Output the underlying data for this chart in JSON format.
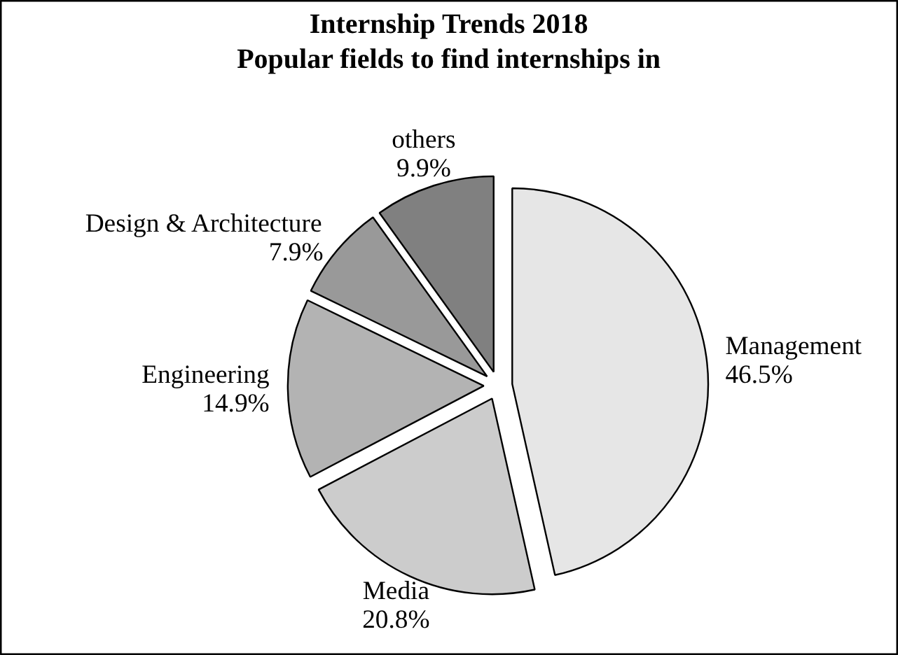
{
  "chart_data": {
    "type": "pie",
    "title": "Internship Trends 2018",
    "subtitle": "Popular fields to find internships in",
    "categories": [
      "Management",
      "Media",
      "Engineering",
      "Design & Architecture",
      "others"
    ],
    "values": [
      46.5,
      20.8,
      14.9,
      7.9,
      9.9
    ],
    "value_labels": [
      "46.5%",
      "20.8%",
      "14.9%",
      "7.9%",
      "9.9%"
    ],
    "colors": [
      "#e6e6e6",
      "#cccccc",
      "#b3b3b3",
      "#999999",
      "#808080"
    ],
    "legend": false
  }
}
